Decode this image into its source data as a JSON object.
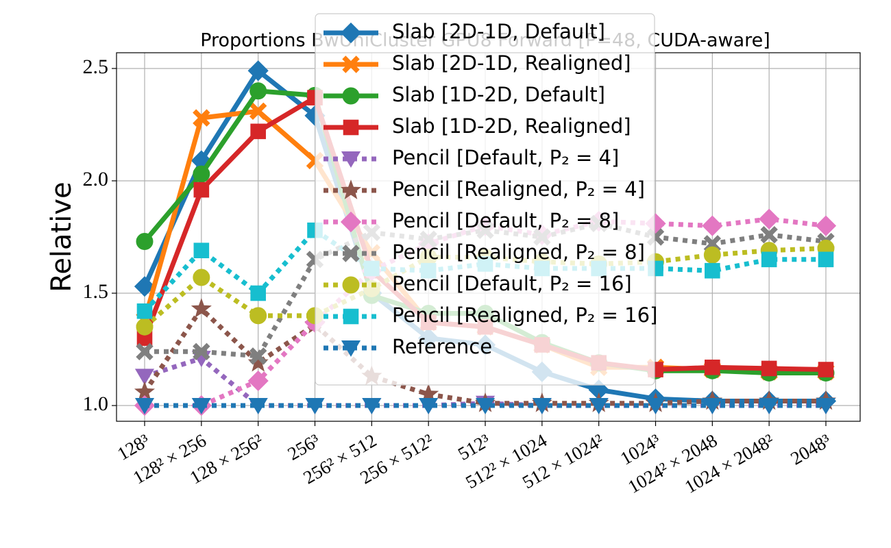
{
  "chart_data": {
    "type": "line",
    "title": "Proportions BwUniCluster GPU8 Forward [P=48, CUDA-aware]",
    "y_label": "Relative",
    "categories": [
      "128³",
      "128² × 256",
      "128 × 256²",
      "256³",
      "256² × 512",
      "256 × 512²",
      "512³",
      "512² × 1024",
      "512 × 1024²",
      "1024³",
      "1024² × 2048",
      "1024 × 2048²",
      "2048³"
    ],
    "ylim": [
      0.93,
      2.57
    ],
    "yticks": [
      {
        "value": 1,
        "label": "1.0"
      },
      {
        "value": 1.5,
        "label": "1.5"
      },
      {
        "value": 2,
        "label": "2.0"
      },
      {
        "value": 2.5,
        "label": "2.5"
      }
    ],
    "grid": true,
    "legend": "upper center",
    "series": [
      {
        "name": "Slab [2D-1D, Default]",
        "color": "#1f77b4",
        "marker": "diamond",
        "dash": "solid",
        "values": [
          1.53,
          2.09,
          2.49,
          2.29,
          1.5,
          1.3,
          1.27,
          1.15,
          1.07,
          1.03,
          1.02,
          1.02,
          1.02
        ]
      },
      {
        "name": "Slab [2D-1D, Realigned]",
        "color": "#ff7f0e",
        "marker": "x",
        "dash": "solid",
        "values": [
          1.38,
          2.28,
          2.31,
          2.09,
          1.68,
          1.37,
          1.35,
          1.27,
          1.17,
          1.17,
          1.16,
          1.15,
          1.15
        ]
      },
      {
        "name": "Slab [1D-2D, Default]",
        "color": "#2ca02c",
        "marker": "circle",
        "dash": "solid",
        "values": [
          1.73,
          2.03,
          2.4,
          2.38,
          1.49,
          1.41,
          1.41,
          1.28,
          1.19,
          1.155,
          1.155,
          1.145,
          1.145
        ]
      },
      {
        "name": "Slab [1D-2D, Realigned]",
        "color": "#d62728",
        "marker": "square",
        "dash": "solid",
        "values": [
          1.3,
          1.96,
          2.22,
          2.37,
          1.6,
          1.37,
          1.35,
          1.27,
          1.19,
          1.16,
          1.17,
          1.165,
          1.16
        ]
      },
      {
        "name": "Pencil [Default, P₂ = 4]",
        "color": "#9467bd",
        "marker": "tri",
        "dash": "dot",
        "values": [
          1.13,
          1.21,
          1.0,
          1.0,
          1.0,
          1.0,
          1.01,
          1.0,
          1.0,
          1.0,
          1.0,
          1.0,
          1.0
        ]
      },
      {
        "name": "Pencil [Realigned, P₂ = 4]",
        "color": "#8c564b",
        "marker": "star",
        "dash": "dot",
        "values": [
          1.06,
          1.43,
          1.19,
          1.36,
          1.13,
          1.05,
          1.01,
          1.01,
          1.01,
          1.01,
          1.02,
          1.02,
          1.02
        ]
      },
      {
        "name": "Pencil [Default, P₂ = 8]",
        "color": "#e377c2",
        "marker": "diamond",
        "dash": "dot",
        "values": [
          1.0,
          1.0,
          1.11,
          1.37,
          1.6,
          1.72,
          1.8,
          1.76,
          1.82,
          1.81,
          1.8,
          1.83,
          1.8
        ]
      },
      {
        "name": "Pencil [Realigned, P₂ = 8]",
        "color": "#7f7f7f",
        "marker": "x",
        "dash": "dot",
        "values": [
          1.24,
          1.24,
          1.22,
          1.65,
          1.77,
          1.74,
          1.78,
          1.75,
          1.81,
          1.75,
          1.72,
          1.76,
          1.73
        ]
      },
      {
        "name": "Pencil [Default, P₂ = 16]",
        "color": "#bcbd22",
        "marker": "circle",
        "dash": "dot",
        "values": [
          1.35,
          1.57,
          1.4,
          1.4,
          1.52,
          1.66,
          1.66,
          1.64,
          1.63,
          1.64,
          1.67,
          1.69,
          1.7
        ]
      },
      {
        "name": "Pencil [Realigned, P₂ = 16]",
        "color": "#17becf",
        "marker": "square",
        "dash": "dot",
        "values": [
          1.42,
          1.69,
          1.5,
          1.78,
          1.61,
          1.6,
          1.63,
          1.61,
          1.61,
          1.61,
          1.6,
          1.65,
          1.65
        ]
      },
      {
        "name": "Reference",
        "color": "#1f77b4",
        "marker": "tri",
        "dash": "dot",
        "values": [
          1,
          1,
          1,
          1,
          1,
          1,
          1,
          1,
          1,
          1,
          1,
          1,
          1
        ]
      }
    ]
  }
}
